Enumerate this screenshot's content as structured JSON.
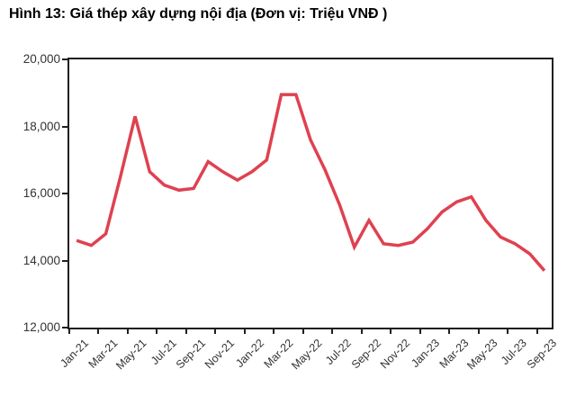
{
  "title": "Hình 13: Giá thép xây dựng nội địa (Đơn vị: Triệu VNĐ )",
  "chart_data": {
    "type": "line",
    "title": "Hình 13: Giá thép xây dựng nội địa (Đơn vị: Triệu VNĐ )",
    "series_name": "Giá thép xây dựng nội địa (Triệu VNĐ)",
    "x": [
      "Jan-21",
      "Feb-21",
      "Mar-21",
      "Apr-21",
      "May-21",
      "Jun-21",
      "Jul-21",
      "Aug-21",
      "Sep-21",
      "Oct-21",
      "Nov-21",
      "Dec-21",
      "Jan-22",
      "Feb-22",
      "Mar-22",
      "Apr-22",
      "May-22",
      "Jun-22",
      "Jul-22",
      "Aug-22",
      "Sep-22",
      "Oct-22",
      "Nov-22",
      "Dec-22",
      "Jan-23",
      "Feb-23",
      "Mar-23",
      "Apr-23",
      "May-23",
      "Jun-23",
      "Jul-23",
      "Aug-23",
      "Sep-23"
    ],
    "values": [
      14600,
      14450,
      14800,
      16500,
      18300,
      16650,
      16250,
      16100,
      16150,
      16950,
      16650,
      16400,
      16650,
      17000,
      18950,
      18950,
      17600,
      16700,
      15650,
      14400,
      15200,
      14500,
      14450,
      14550,
      14950,
      15450,
      15750,
      15900,
      15200,
      14700,
      14500,
      14200,
      13700
    ],
    "x_tick_labels": [
      "Jan-21",
      "Mar-21",
      "May-21",
      "Jul-21",
      "Sep-21",
      "Nov-21",
      "Jan-22",
      "Mar-22",
      "May-22",
      "Jul-22",
      "Sep-22",
      "Nov-22",
      "Jan-23",
      "Mar-23",
      "May-23",
      "Jul-23",
      "Sep-23"
    ],
    "y_ticks": [
      12000,
      14000,
      16000,
      18000,
      20000
    ],
    "y_tick_labels": [
      "12,000",
      "14,000",
      "16,000",
      "18,000",
      "20,000"
    ],
    "ylim": [
      12000,
      20000
    ],
    "grid": false,
    "legend_position": "none",
    "line_color": "#DF4150",
    "axis_color": "#1f1f1f",
    "label_color": "#333333"
  }
}
